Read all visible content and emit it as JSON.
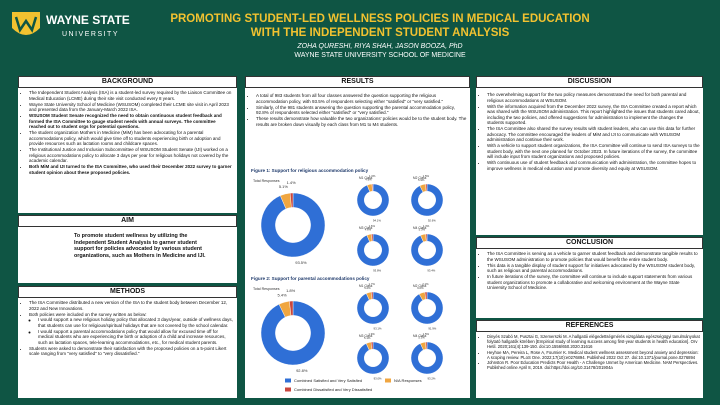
{
  "header": {
    "logo": {
      "name": "WAYNE STATE",
      "sub": "UNIVERSITY"
    },
    "title": "PROMOTING STUDENT-LED WELLNESS POLICIES IN MEDICAL EDUCATION WITH THE INDEPENDENT STUDENT ANALYSIS",
    "authors": "ZOHA QURESHI, RIYA SHAH, JASON BOOZA, PhD",
    "affiliation": "WAYNE STATE UNIVERSITY SCHOOL OF MEDICINE"
  },
  "background": {
    "heading": "BACKGROUND",
    "items": [
      "The Independent Student Analysis (ISA) is a student-led survey required by the Liaison Committee on Medical Education (LCME) during their site visit conducted every 8 years.",
      "Wayne State University School of Medicine (WSUSOM) completed their LCME site visit in April 2023 and presented data from the January-March 2022 ISA.",
      {
        "text": "WSUSOM Student Senate recognized the need to obtain continuous student feedback and formed the ISA Committee to gauge student needs with annual surveys. The committee reached out to student orgs for potential questions.",
        "bold": true
      },
      "The student organization Mothers in Medicine (MiM) has been advocating for a parental accommodations policy, which would give time off to students experiencing birth or adoption and provide resources such as lactation rooms and childcare spaces.",
      "The Institutional Justice and Inclusion Subcommittee of WSUSOM Student Senate (IJI) worked on a religious accommodations policy to allocate 3 days per year for religious holidays not covered by the academic calendar.",
      {
        "text": "Both MiM and IJI turned to the ISA Committee, who used their December 2022 survey to garner student opinion about these proposed policies.",
        "bold": true
      }
    ]
  },
  "aim": {
    "heading": "AIM",
    "text": "To promote student wellness by utilizing the Independent Student Analysis to garner student support for policies advocated by various student organizations, such as Mothers in Medicine and IJI."
  },
  "methods": {
    "heading": "METHODS",
    "items": [
      "The ISA Committee distributed a new version of the ISA to the student body between December 12, 2022 and New Innovations.",
      {
        "text": "Both policies were included on the survey written as below:",
        "sub": [
          "I would support a new religious holiday policy that allocated 3 days/year, outside of wellness days, that students can use for religious/spiritual holidays that are not covered by the school calendar.",
          "I would support a parental accommodations policy that would allow for excused time off for medical students who are experiencing the birth or adoption of a child and increase resources, such as lactation spaces, tele-learning accommodations, etc., for medical student parents."
        ]
      },
      "Students were asked to demonstrate their satisfaction with the proposed policies on a 5-point Likert scale ranging from \"very satisfied\" to \"very dissatisfied.\""
    ]
  },
  "results": {
    "heading": "RESULTS",
    "items": [
      "A total of 983 students from all four classes answered the question supporting the religious accommodation policy, with 93.5% of responders selecting either \"satisfied\" or \"very satisfied.\"",
      "Similarly, of the 981 students answering the question supporting the parental accommodation policy, 92.8% of respondents selected either \"satisfied\" or \"very satisfied.\"",
      "These results demonstrate how valuable the two organizations' policies would be to the student body. The results are broken down visually by each class from M1 to M4 students."
    ],
    "figures": [
      {
        "title": "Figure 1: Support for religious accommodation policy",
        "charts": [
          {
            "label": "Total Responses",
            "values": [
              93.5,
              5.1,
              1.4
            ],
            "value_labels": [
              "93.5%",
              "5.1%",
              "1.4%"
            ]
          },
          {
            "label": "M1 Class",
            "values": [
              94.1,
              4.9,
              1.0
            ],
            "value_labels": [
              "94.1%",
              "4.9%",
              "1.0%"
            ]
          },
          {
            "label": "M2 Class",
            "values": [
              92.6,
              5.9,
              1.5
            ],
            "value_labels": [
              "92.6%",
              "5.9%",
              "1.5%"
            ]
          },
          {
            "label": "M3 Class",
            "values": [
              93.8,
              4.6,
              1.6
            ],
            "value_labels": [
              "93.8%",
              "4.6%",
              "1.6%"
            ]
          },
          {
            "label": "M4 Class",
            "values": [
              93.4,
              5.3,
              1.3
            ],
            "value_labels": [
              "93.4%",
              "5.3%",
              "1.3%"
            ]
          }
        ]
      },
      {
        "title": "Figure 2: Support for parental accommodations policy",
        "charts": [
          {
            "label": "Total Responses",
            "values": [
              92.8,
              5.4,
              1.8
            ],
            "value_labels": [
              "92.8%",
              "5.4%",
              "1.8%"
            ]
          },
          {
            "label": "M1 Class",
            "values": [
              93.1,
              5.2,
              1.7
            ],
            "value_labels": [
              "93.1%",
              "5.2%",
              "1.7%"
            ]
          },
          {
            "label": "M2 Class",
            "values": [
              91.9,
              6.0,
              2.1
            ],
            "value_labels": [
              "91.9%",
              "6.0%",
              "2.1%"
            ]
          },
          {
            "label": "M3 Class",
            "values": [
              93.0,
              5.1,
              1.9
            ],
            "value_labels": [
              "93.0%",
              "5.1%",
              "1.9%"
            ]
          },
          {
            "label": "M4 Class",
            "values": [
              93.2,
              5.3,
              1.5
            ],
            "value_labels": [
              "93.2%",
              "5.3%",
              "1.5%"
            ]
          }
        ]
      }
    ],
    "legend": [
      {
        "name": "Combined Satisfied and Very Satisfied",
        "color": "#2f6fd6"
      },
      {
        "name": "N/A Responses",
        "color": "#f0a640"
      },
      {
        "name": "Combined Dissatisfied and Very Dissatisfied",
        "color": "#c9463d"
      }
    ]
  },
  "discussion": {
    "heading": "DISCUSSION",
    "items": [
      "The overwhelming support for the two policy measures demonstrated the need for both parental and religious accommodations at WSUSOM.",
      "With the information acquired from the December 2022 survey, the ISA Committee created a report which was shared with the WSUSOM administration. This report highlighted the issues that students cared about, including the two policies, and offered suggestions for administration to implement the changes the students supported.",
      "The ISA Committee also shared the survey results with student leaders, who can use this data for further advocacy. The committee encouraged the leaders of MiM and IJI to communicate with WSUSOM administration and continue their work.",
      "With a vehicle to support student organizations, the ISA Committee will continue to send ISA surveys to the student body, with the next one planned for October 2023. In future iterations of the survey, the committee will include input from student organizations and proposed policies.",
      "With continuous use of student feedback and communication with administration, the committee hopes to improve wellness in medical education and promote diversity and equity at WSUSOM."
    ]
  },
  "conclusion": {
    "heading": "CONCLUSION",
    "items": [
      "The ISA Committee is serving as a vehicle to garner student feedback and demonstrate tangible results to the WSUSOM administration to promote policies that would benefit the entire student body.",
      "This data is a tangible display of student support for initiatives advocated by the WSUSOM student body, such as religious and parental accommodations.",
      "In future iterations of the survey, the committee will continue to include support statements from various student organizations to promote a collaborative and welcoming environment at the Wayne State University School of Medicine."
    ]
  },
  "references": {
    "heading": "REFERENCES",
    "items": [
      "Dinyés Szabó M, Pusztai G, Szemerszki M. A hallgatói elégedettségmérés vizsgálata egészségügyi tanulmányokat folytató hallgatók körében [Empirical study of learning success among first-year students in health education]. Orv Hetil. 2020;161(4):139-150. doi:10.1556/650.2020.31616",
      "Heyhoe MA, Pereira L, Rose A, Fournier K. Medical student wellness assessment beyond anxiety and depression: A scoping review. PLoS One. 2022;17(10):e0276894. Published 2022 Oct 27. doi:10.1371/journal.pone.0276894",
      "Johnston R. Poor Education Predicts Poor Health - A Challenge Unmet by American Medicine. NAM Perspectives. Published online April 8, 2019. doi:https://doi.org/10.31478/201904a"
    ]
  }
}
